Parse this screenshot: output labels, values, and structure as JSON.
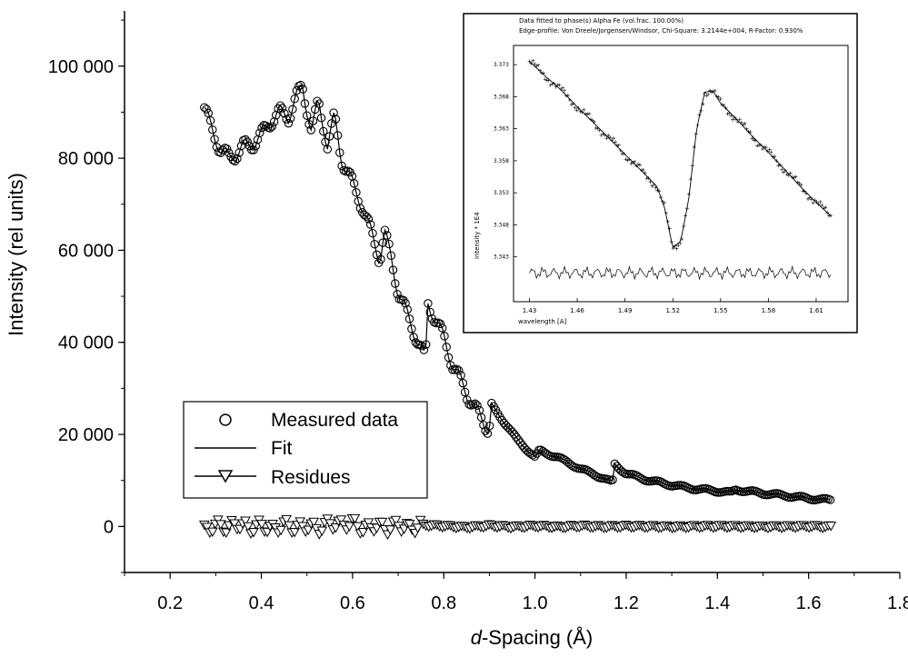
{
  "chart_data": [
    {
      "type": "scatter",
      "xlabel_italic": "d",
      "xlabel_rest": "-Spacing (Å)",
      "ylabel": "Intensity (rel units)",
      "xlim": [
        0.1,
        1.8
      ],
      "ylim": [
        -10000,
        112000
      ],
      "x_ticks": [
        "0.2",
        "0.4",
        "0.6",
        "0.8",
        "1.0",
        "1.2",
        "1.4",
        "1.6",
        "1.8"
      ],
      "x_tick_values": [
        0.2,
        0.4,
        0.6,
        0.8,
        1.0,
        1.2,
        1.4,
        1.6,
        1.8
      ],
      "y_ticks": [
        "0",
        "20 000",
        "40 000",
        "60 000",
        "80 000",
        "100 000"
      ],
      "y_tick_values": [
        0,
        20000,
        40000,
        60000,
        80000,
        100000
      ],
      "legend": {
        "position": "lower-left",
        "entries": [
          "Measured data",
          "Fit",
          "Residues"
        ]
      },
      "series": [
        {
          "name": "Measured data",
          "marker": "circle",
          "x": [
            0.275,
            0.29,
            0.31,
            0.33,
            0.345,
            0.36,
            0.38,
            0.4,
            0.42,
            0.44,
            0.46,
            0.475,
            0.49,
            0.51,
            0.525,
            0.545,
            0.56,
            0.575,
            0.59,
            0.605,
            0.62,
            0.64,
            0.66,
            0.67,
            0.685,
            0.7,
            0.72,
            0.74,
            0.76,
            0.765,
            0.775,
            0.8,
            0.82,
            0.85,
            0.875,
            0.9,
            0.905,
            0.93,
            0.96,
            1.0,
            1.01,
            1.05,
            1.1,
            1.15,
            1.17,
            1.175,
            1.2,
            1.25,
            1.3,
            1.35,
            1.4,
            1.43,
            1.44,
            1.5,
            1.55,
            1.6,
            1.65
          ],
          "y": [
            91000,
            86500,
            82000,
            80000,
            81000,
            82500,
            83000,
            85000,
            88000,
            90000,
            89000,
            93000,
            95500,
            86000,
            92000,
            83000,
            89000,
            80000,
            77000,
            73000,
            70000,
            64000,
            58000,
            64000,
            58000,
            51000,
            46000,
            41000,
            36000,
            48500,
            46500,
            41000,
            35000,
            29000,
            24500,
            21000,
            26500,
            23000,
            19000,
            15000,
            16500,
            15000,
            12500,
            10500,
            9500,
            13500,
            11500,
            10000,
            9000,
            8200,
            7700,
            7300,
            8000,
            7200,
            6700,
            6100,
            5700
          ]
        },
        {
          "name": "Residues",
          "marker": "triangle-down",
          "x": [
            0.275,
            0.3,
            0.325,
            0.35,
            0.375,
            0.4,
            0.425,
            0.45,
            0.475,
            0.5,
            0.525,
            0.55,
            0.575,
            0.6,
            0.625,
            0.65,
            0.675,
            0.7,
            0.725,
            0.75,
            0.8,
            0.85,
            0.9,
            0.95,
            1.0,
            1.05,
            1.1,
            1.15,
            1.2,
            1.3,
            1.4,
            1.5,
            1.6,
            1.65
          ],
          "y": [
            -1500,
            500,
            -500,
            1000,
            -800,
            500,
            -1200,
            800,
            -700,
            300,
            -900,
            1200,
            500,
            1500,
            -1200,
            600,
            -800,
            800,
            -900,
            600,
            200,
            -300,
            300,
            -200,
            200,
            -200,
            200,
            -100,
            100,
            -100,
            100,
            -100,
            100,
            -100
          ]
        }
      ]
    },
    {
      "type": "scatter",
      "position": "inset-top-right",
      "header_line1": "Data fitted to phase(s) Alpha Fe (vol.frac. 100.00%)",
      "header_line2": "Edge-profile: Von Dreele/Jorgensen/Windsor, Chi-Square: 3.2144e+004, R-Factor:   0.930%",
      "xlabel": "wavelength [A]",
      "ylabel": "intensity * 1E4",
      "xlim": [
        1.42,
        1.63
      ],
      "ylim": [
        3.336,
        3.376
      ],
      "x_ticks": [
        "1.43",
        "1.46",
        "1.49",
        "1.52",
        "1.55",
        "1.58",
        "1.61"
      ],
      "x_tick_values": [
        1.43,
        1.46,
        1.49,
        1.52,
        1.55,
        1.58,
        1.61
      ],
      "y_ticks": [
        "3.343",
        "3.348",
        "3.353",
        "3.358",
        "3.363",
        "3.368",
        "3.373"
      ],
      "y_tick_values": [
        3.343,
        3.348,
        3.353,
        3.358,
        3.363,
        3.368,
        3.373
      ],
      "series": [
        {
          "name": "data",
          "marker": "plus",
          "x": [
            1.43,
            1.44,
            1.45,
            1.46,
            1.47,
            1.48,
            1.49,
            1.5,
            1.51,
            1.515,
            1.52,
            1.525,
            1.53,
            1.535,
            1.54,
            1.545,
            1.55,
            1.56,
            1.57,
            1.58,
            1.59,
            1.6,
            1.61,
            1.62
          ],
          "y": [
            3.3735,
            3.3712,
            3.369,
            3.3664,
            3.364,
            3.3615,
            3.359,
            3.3565,
            3.354,
            3.3505,
            3.3444,
            3.3455,
            3.352,
            3.363,
            3.3687,
            3.3689,
            3.367,
            3.3645,
            3.3618,
            3.3593,
            3.3567,
            3.354,
            3.3515,
            3.3492
          ]
        },
        {
          "name": "residual",
          "marker": "line",
          "x": [
            1.43,
            1.45,
            1.47,
            1.49,
            1.51,
            1.52,
            1.53,
            1.55,
            1.57,
            1.59,
            1.61,
            1.62
          ],
          "y": [
            3.3405,
            3.3405,
            3.3405,
            3.3405,
            3.3405,
            3.3405,
            3.3405,
            3.3405,
            3.3405,
            3.3405,
            3.3405,
            3.3405
          ]
        }
      ]
    }
  ]
}
